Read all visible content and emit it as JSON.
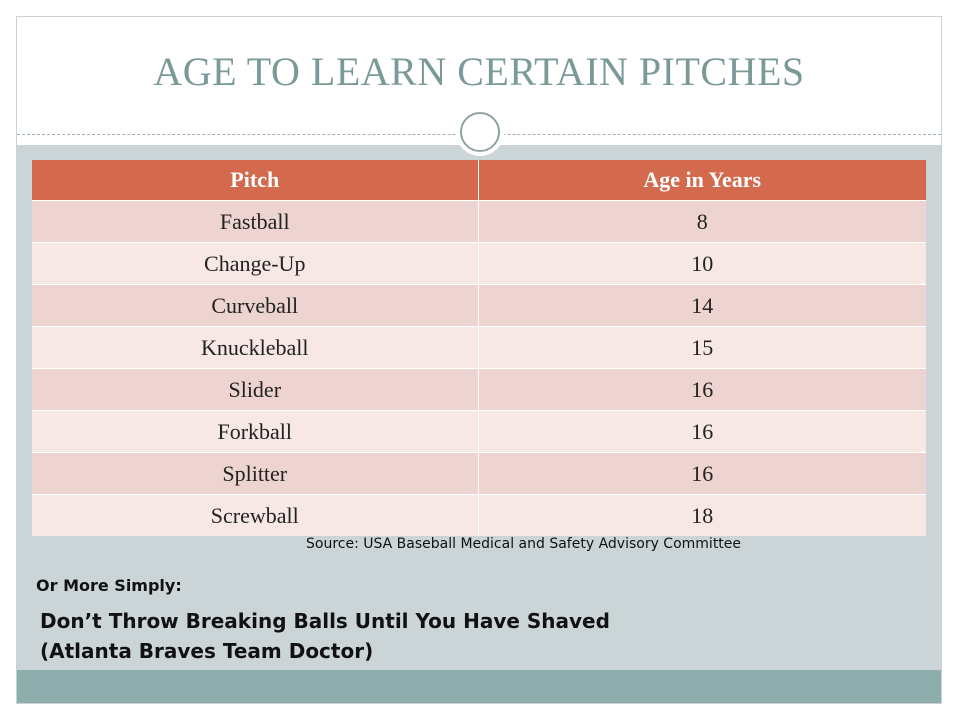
{
  "slide": {
    "title": "AGE TO LEARN CERTAIN PITCHES",
    "table": {
      "headers": [
        "Pitch",
        "Age in Years"
      ],
      "rows": [
        {
          "pitch": "Fastball",
          "age": "8"
        },
        {
          "pitch": "Change-Up",
          "age": "10"
        },
        {
          "pitch": "Curveball",
          "age": "14"
        },
        {
          "pitch": "Knuckleball",
          "age": "15"
        },
        {
          "pitch": "Slider",
          "age": "16"
        },
        {
          "pitch": "Forkball",
          "age": "16"
        },
        {
          "pitch": "Splitter",
          "age": "16"
        },
        {
          "pitch": "Screwball",
          "age": "18"
        }
      ]
    },
    "source": "Source: USA Baseball Medical and Safety Advisory Committee",
    "simply_label": "Or More Simply:",
    "quote_line1": "Don’t Throw Breaking Balls Until You Have Shaved",
    "quote_line2": "(Atlanta Braves Team Doctor)"
  },
  "colors": {
    "title": "#7a9a98",
    "header": "#d36a4e",
    "row_odd": "#eed4d0",
    "row_even": "#f7e8e6",
    "body_background": "#cbd5d8",
    "footer_bar": "#8eaeae"
  }
}
